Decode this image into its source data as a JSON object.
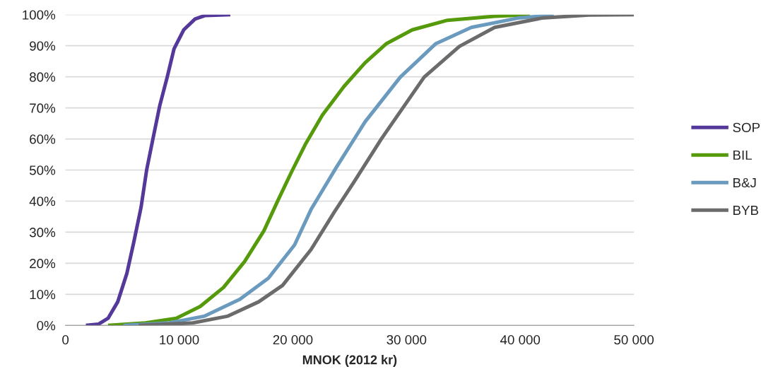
{
  "chart_data": {
    "type": "line",
    "xlabel": "MNOK (2012 kr)",
    "xlim": [
      0,
      50000
    ],
    "xticks": [
      {
        "value": 0,
        "label": "0"
      },
      {
        "value": 10000,
        "label": "10 000"
      },
      {
        "value": 20000,
        "label": "20 000"
      },
      {
        "value": 30000,
        "label": "30 000"
      },
      {
        "value": 40000,
        "label": "40 000"
      },
      {
        "value": 50000,
        "label": "50 000"
      }
    ],
    "ylim": [
      0,
      100
    ],
    "yticks": [
      {
        "value": 0,
        "label": "0%"
      },
      {
        "value": 10,
        "label": "10%"
      },
      {
        "value": 20,
        "label": "20%"
      },
      {
        "value": 30,
        "label": "30%"
      },
      {
        "value": 40,
        "label": "40%"
      },
      {
        "value": 50,
        "label": "50%"
      },
      {
        "value": 60,
        "label": "60%"
      },
      {
        "value": 70,
        "label": "70%"
      },
      {
        "value": 80,
        "label": "80%"
      },
      {
        "value": 90,
        "label": "90%"
      },
      {
        "value": 100,
        "label": "100%"
      }
    ],
    "grid": "y",
    "legend": "right",
    "marker": "none",
    "line_style": "solid",
    "series": [
      {
        "name": "SOP",
        "color": "#54399a",
        "x": [
          1800,
          2900,
          3750,
          4600,
          5400,
          6000,
          6650,
          7150,
          7700,
          8300,
          8950,
          9550,
          10400,
          11400,
          12250,
          14500
        ],
        "values": [
          0,
          0.4,
          2.3,
          7.6,
          16.7,
          26.6,
          38,
          50.2,
          60.1,
          70.8,
          79.9,
          89,
          95.1,
          98.6,
          99.7,
          100
        ]
      },
      {
        "name": "BIL",
        "color": "#559a0a",
        "x": [
          3750,
          7050,
          9750,
          11850,
          13900,
          15750,
          17450,
          18700,
          19900,
          21150,
          22600,
          24500,
          26350,
          28200,
          30500,
          33600,
          37750,
          40850
        ],
        "values": [
          0,
          0.8,
          2.3,
          6.1,
          12.2,
          20.5,
          30.4,
          40.3,
          49.5,
          58.6,
          67.7,
          76.9,
          84.5,
          90.6,
          95.1,
          98.2,
          99.5,
          100
        ]
      },
      {
        "name": "B&J",
        "color": "#6a9abd",
        "x": [
          5100,
          9150,
          12250,
          15350,
          17850,
          20150,
          21600,
          23850,
          26350,
          29450,
          32550,
          35700,
          39800,
          42950
        ],
        "values": [
          0,
          0.8,
          3,
          8.4,
          15.2,
          25.9,
          37.3,
          51,
          65.5,
          79.9,
          90.6,
          95.9,
          98.9,
          99.9
        ]
      },
      {
        "name": "BYB",
        "color": "#6b6b6b",
        "x": [
          6450,
          11200,
          14300,
          17000,
          19100,
          21600,
          23650,
          25300,
          27800,
          31550,
          34650,
          37750,
          41900,
          46050,
          50000
        ],
        "values": [
          0,
          0.8,
          3,
          7.6,
          12.9,
          24.4,
          36.5,
          45.7,
          60.1,
          79.9,
          89.8,
          95.9,
          98.9,
          99.9,
          100
        ]
      }
    ]
  }
}
